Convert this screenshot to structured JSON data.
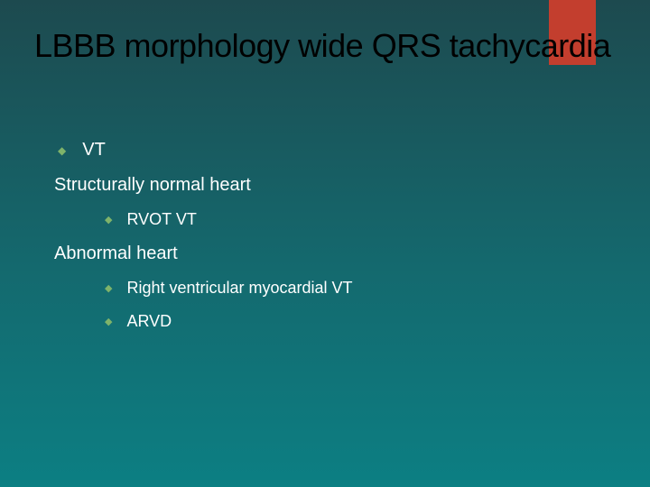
{
  "slide": {
    "title": "LBBB morphology wide QRS tachycardia",
    "background_gradient": {
      "top_color": "#1d4a4f",
      "mid_color": "#14696e",
      "bottom_color": "#0c7f83"
    },
    "accent_bar_color": "#c33e2e",
    "title_color": "#000000",
    "text_color": "#ffffff",
    "bullet_color": "#7fb36a",
    "items": {
      "b1": "VT",
      "line1": "Structurally normal heart",
      "b2a": "RVOT VT",
      "line2": "Abnormal heart",
      "b2b": "Right ventricular myocardial VT",
      "b2c": "ARVD"
    }
  }
}
